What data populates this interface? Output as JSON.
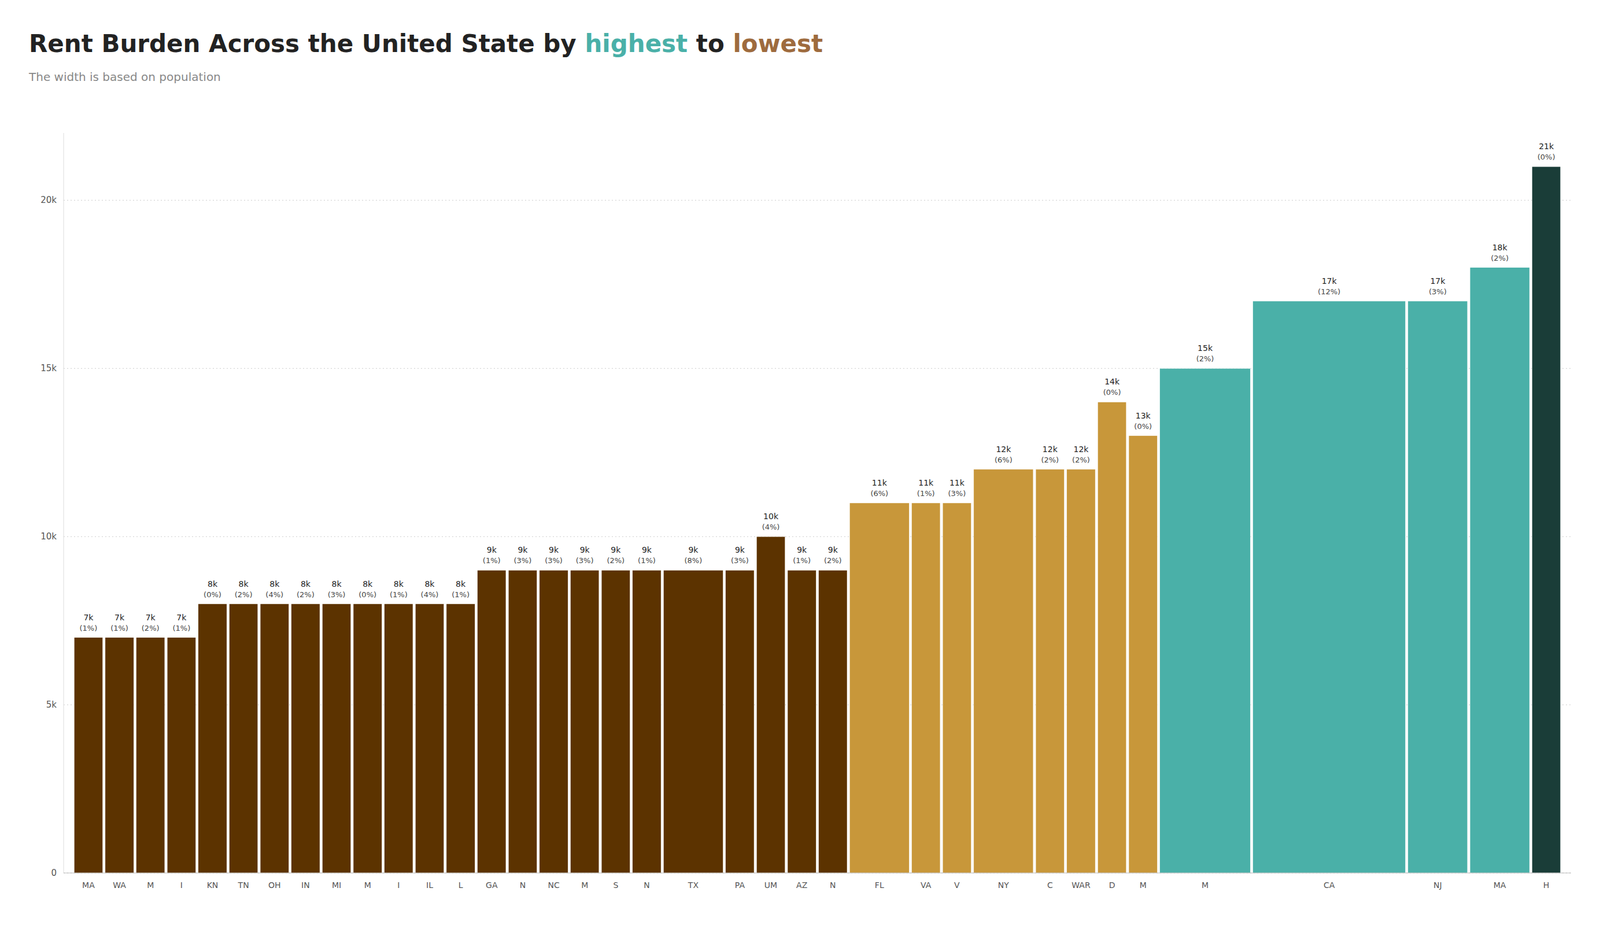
{
  "chart_data": {
    "type": "bar",
    "title": [
      {
        "text": "Rent Burden Across the United State by ",
        "color": "#222222"
      },
      {
        "text": "highest",
        "color": "#4ab0a8"
      },
      {
        "text": " to ",
        "color": "#222222"
      },
      {
        "text": "lowest",
        "color": "#9e6b3e"
      }
    ],
    "subtitle": "The width is based on population",
    "categories": [
      "MA",
      "WA",
      "M",
      "I",
      "KN",
      "TN",
      "OH",
      "IN",
      "MI",
      "M",
      "I",
      "IL",
      "L",
      "GA",
      "N",
      "NC",
      "M",
      "S",
      "N",
      "TX",
      "PA",
      "UM",
      "AZ",
      "N",
      "FL",
      "VA",
      "V",
      "NY",
      "C",
      "WAR",
      "D",
      "M",
      "M",
      "CA",
      "NJ",
      "MA",
      "H"
    ],
    "values": [
      7000,
      7000,
      7000,
      7000,
      8000,
      8000,
      8000,
      8000,
      8000,
      8000,
      8000,
      8000,
      8000,
      9000,
      9000,
      9000,
      9000,
      9000,
      9000,
      9000,
      9000,
      10000,
      9000,
      9000,
      11000,
      11000,
      11000,
      12000,
      12000,
      12000,
      14000,
      13000,
      15000,
      17000,
      17000,
      18000,
      21000
    ],
    "value_labels": [
      "7k",
      "7k",
      "7k",
      "7k",
      "8k",
      "8k",
      "8k",
      "8k",
      "8k",
      "8k",
      "8k",
      "8k",
      "8k",
      "9k",
      "9k",
      "9k",
      "9k",
      "9k",
      "9k",
      "9k",
      "9k",
      "10k",
      "9k",
      "9k",
      "11k",
      "11k",
      "11k",
      "12k",
      "12k",
      "12k",
      "14k",
      "13k",
      "15k",
      "17k",
      "17k",
      "18k",
      "21k"
    ],
    "widths": [
      1,
      1,
      1,
      1,
      1,
      1,
      1,
      1,
      1,
      1,
      1,
      1,
      1,
      1,
      1,
      1,
      1,
      1,
      1,
      2,
      1,
      1,
      1,
      1,
      2,
      1,
      1,
      2,
      1,
      1,
      1,
      1,
      3,
      5,
      2,
      2,
      1
    ],
    "shares": [
      1,
      1,
      2,
      1,
      0,
      2,
      4,
      2,
      3,
      0,
      1,
      4,
      1,
      1,
      3,
      3,
      3,
      2,
      1,
      8,
      3,
      4,
      1,
      2,
      6,
      1,
      3,
      6,
      2,
      2,
      0,
      0,
      2,
      12,
      3,
      2,
      0
    ],
    "share_labels": [
      "(1%)",
      "(1%)",
      "(2%)",
      "(1%)",
      "(0%)",
      "(2%)",
      "(4%)",
      "(2%)",
      "(3%)",
      "(0%)",
      "(1%)",
      "(4%)",
      "(1%)",
      "(1%)",
      "(3%)",
      "(3%)",
      "(3%)",
      "(2%)",
      "(1%)",
      "(8%)",
      "(3%)",
      "(4%)",
      "(1%)",
      "(2%)",
      "(6%)",
      "(1%)",
      "(3%)",
      "(6%)",
      "(2%)",
      "(2%)",
      "(0%)",
      "(0%)",
      "(2%)",
      "(12%)",
      "(3%)",
      "(2%)",
      "(0%)"
    ],
    "colors": [
      "#5c3300",
      "#5c3300",
      "#5c3300",
      "#5c3300",
      "#5c3300",
      "#5c3300",
      "#5c3300",
      "#5c3300",
      "#5c3300",
      "#5c3300",
      "#5c3300",
      "#5c3300",
      "#5c3300",
      "#5c3300",
      "#5c3300",
      "#5c3300",
      "#5c3300",
      "#5c3300",
      "#5c3300",
      "#5c3300",
      "#5c3300",
      "#5c3300",
      "#5c3300",
      "#5c3300",
      "#c8973a",
      "#c8973a",
      "#c8973a",
      "#c8973a",
      "#c8973a",
      "#c8973a",
      "#c8973a",
      "#c8973a",
      "#4ab0a8",
      "#4ab0a8",
      "#4ab0a8",
      "#4ab0a8",
      "#1a3d38"
    ],
    "ylim": [
      0,
      22000
    ],
    "yticks": [
      0,
      {
        "value": 5000,
        "label": "5k"
      },
      {
        "value": 10000,
        "label": "10k"
      },
      {
        "value": 15000,
        "label": "15k"
      },
      {
        "value": 20000,
        "label": "20k"
      }
    ],
    "grid": true,
    "data_labels": true
  }
}
